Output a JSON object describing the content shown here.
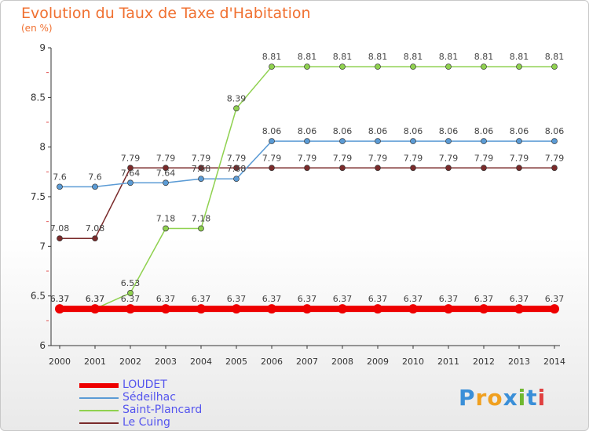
{
  "header": {
    "title": "Evolution du Taux de Taxe d'Habitation",
    "unit": "(en %)"
  },
  "chart_data": {
    "type": "line",
    "title": "Evolution du Taux de Taxe d'Habitation",
    "ylabel": "(en %)",
    "xlabel": "",
    "ylim": [
      6,
      9
    ],
    "yticks": [
      "6",
      "6.5",
      "7",
      "7.5",
      "8",
      "8.5",
      "9"
    ],
    "categories": [
      "2000",
      "2001",
      "2002",
      "2003",
      "2004",
      "2005",
      "2006",
      "2007",
      "2008",
      "2009",
      "2010",
      "2011",
      "2012",
      "2013",
      "2014"
    ],
    "series": [
      {
        "name": "LOUDET",
        "color": "#ee0000",
        "values": [
          6.37,
          6.37,
          6.37,
          6.37,
          6.37,
          6.37,
          6.37,
          6.37,
          6.37,
          6.37,
          6.37,
          6.37,
          6.37,
          6.37,
          6.37
        ],
        "labels": [
          "6.37",
          "6.37",
          "6.37",
          "6.37",
          "6.37",
          "6.37",
          "6.37",
          "6.37",
          "6.37",
          "6.37",
          "6.37",
          "6.37",
          "6.37",
          "6.37",
          "6.37"
        ]
      },
      {
        "name": "Sédeilhac",
        "color": "#5b9bd5",
        "values": [
          7.6,
          7.6,
          7.64,
          7.64,
          7.68,
          7.68,
          8.06,
          8.06,
          8.06,
          8.06,
          8.06,
          8.06,
          8.06,
          8.06,
          8.06
        ],
        "labels": [
          "7.6",
          "7.6",
          "7.64",
          "7.64",
          "7.68",
          "7.68",
          "8.06",
          "8.06",
          "8.06",
          "8.06",
          "8.06",
          "8.06",
          "8.06",
          "8.06",
          "8.06"
        ]
      },
      {
        "name": "Saint-Plancard",
        "color": "#8fd14f",
        "values": [
          6.37,
          6.37,
          6.53,
          7.18,
          7.18,
          8.39,
          8.81,
          8.81,
          8.81,
          8.81,
          8.81,
          8.81,
          8.81,
          8.81,
          8.81
        ],
        "labels": [
          "6.37",
          "6.37",
          "6.53",
          "7.18",
          "7.18",
          "8.39",
          "8.81",
          "8.81",
          "8.81",
          "8.81",
          "8.81",
          "8.81",
          "8.81",
          "8.81",
          "8.81"
        ]
      },
      {
        "name": "Le Cuing",
        "color": "#7a2a2a",
        "values": [
          7.08,
          7.08,
          7.79,
          7.79,
          7.79,
          7.79,
          7.79,
          7.79,
          7.79,
          7.79,
          7.79,
          7.79,
          7.79,
          7.79,
          7.79
        ],
        "labels": [
          "7.08",
          "7.08",
          "7.79",
          "7.79",
          "7.79",
          "7.79",
          "7.79",
          "7.79",
          "7.79",
          "7.79",
          "7.79",
          "7.79",
          "7.79",
          "7.79",
          "7.79"
        ]
      }
    ],
    "legend_position": "bottom-left",
    "grid": false
  },
  "legend": {
    "items": [
      {
        "label": "LOUDET",
        "color": "#ee0000"
      },
      {
        "label": "Sédeilhac",
        "color": "#5b9bd5"
      },
      {
        "label": "Saint-Plancard",
        "color": "#8fd14f"
      },
      {
        "label": "Le Cuing",
        "color": "#7a2a2a"
      }
    ]
  },
  "brand": {
    "letters": [
      "P",
      "r",
      "o",
      "x",
      "i",
      "t",
      "i"
    ],
    "colors": [
      "#3a8fd8",
      "#f0a020",
      "#f0a020",
      "#3a8fd8",
      "#70b830",
      "#3a8fd8",
      "#e04040"
    ]
  }
}
